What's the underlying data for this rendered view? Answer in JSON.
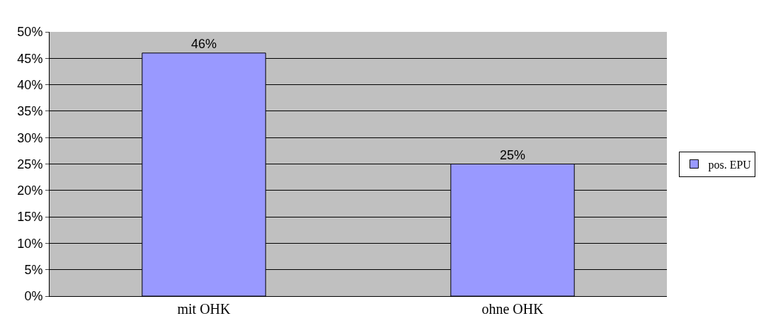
{
  "chart_data": {
    "type": "bar",
    "categories": [
      "mit OHK",
      "ohne OHK"
    ],
    "series": [
      {
        "name": "pos. EPU",
        "color": "#9999ff",
        "values": [
          46,
          25
        ],
        "value_labels": [
          "46%",
          "25%"
        ]
      }
    ],
    "ylim": [
      0,
      50
    ],
    "yticks": [
      {
        "value": 0,
        "label": "0%"
      },
      {
        "value": 5,
        "label": "5%"
      },
      {
        "value": 10,
        "label": "10%"
      },
      {
        "value": 15,
        "label": "15%"
      },
      {
        "value": 20,
        "label": "20%"
      },
      {
        "value": 25,
        "label": "25%"
      },
      {
        "value": 30,
        "label": "30%"
      },
      {
        "value": 35,
        "label": "35%"
      },
      {
        "value": 40,
        "label": "40%"
      },
      {
        "value": 45,
        "label": "45%"
      },
      {
        "value": 50,
        "label": "50%"
      }
    ],
    "grid": "y",
    "legend": "right"
  }
}
